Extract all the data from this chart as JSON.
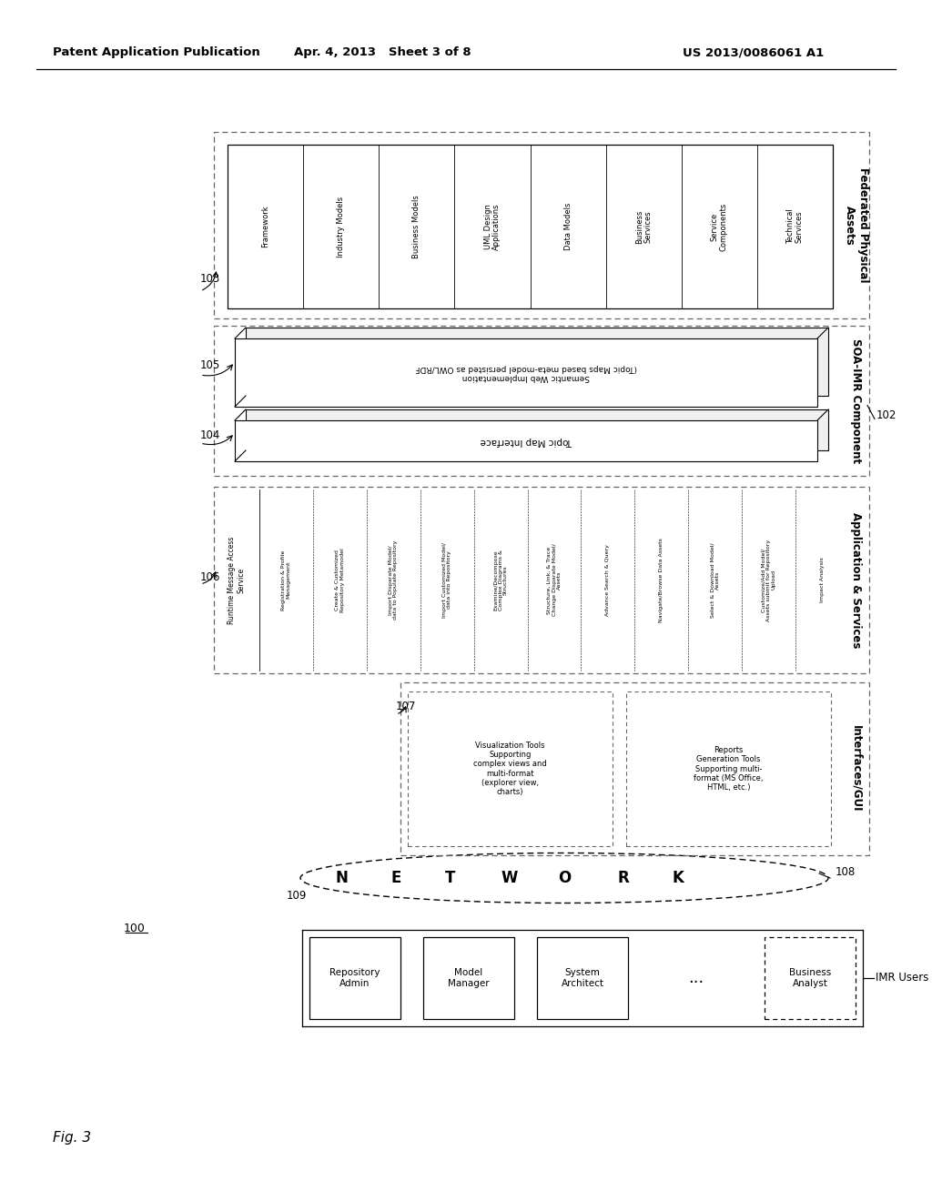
{
  "header_left": "Patent Application Publication",
  "header_mid": "Apr. 4, 2013   Sheet 3 of 8",
  "header_right": "US 2013/0086061 A1",
  "bg_color": "#ffffff",
  "federated_items": [
    "Framework",
    "Industry Models",
    "Business Models",
    "UML Design\nApplications",
    "Data Models",
    "Business\nServices",
    "Service\nComponents",
    "Technical\nServices"
  ],
  "app_service_items": [
    "Registration & Profile\nManagement",
    "Create & Customized\nRepository Metamodel",
    "Import Disparate Model/\ndata to Populate Repository",
    "Import Customized Model/\ndata into Repository",
    "Examine/Decompose\nComplex Diagrams &\nStructures",
    "Structure, Link, & Trace\nChange Disparate Model/\nAssets",
    "Advance Search & Query",
    "Navigate/Browse Data Assets",
    "Select & Download Model/\nAssets",
    "Customize/Add Model/\nAssets submit for Repository\nUpload",
    "Impact Analysis"
  ],
  "viz_tools_label": "Visualization Tools\nSupporting\ncomplex views and\nmulti-format\n(explorer view,\ncharts)",
  "reports_label": "Reports\nGeneration Tools\nSupporting multi-\nformat (MS Office,\nHTML, etc.)",
  "network_letters": [
    "N",
    "E",
    "T",
    "W",
    "O",
    "R",
    "K"
  ],
  "imr_user_items": [
    "Repository\nAdmin",
    "Model\nManager",
    "System\nArchitect",
    "...",
    "Business\nAnalyst"
  ]
}
